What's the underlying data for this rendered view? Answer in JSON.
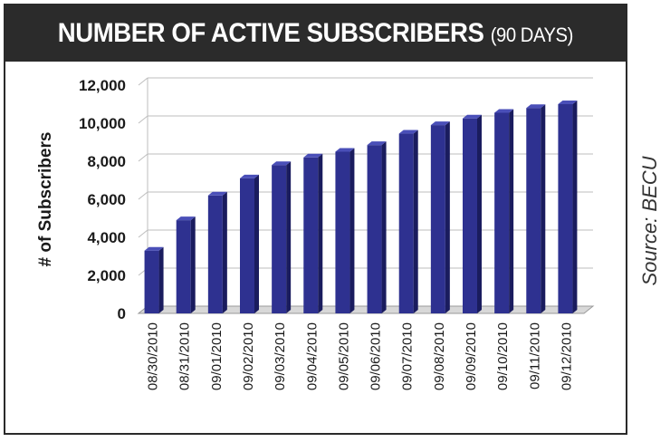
{
  "header": {
    "title": "NUMBER OF ACTIVE SUBSCRIBERS",
    "subtitle": "(90 DAYS)"
  },
  "source": "Source: BECU",
  "colors": {
    "bar": "#2e3190",
    "bar_side": "#1a1c5e",
    "bar_top": "#4a4fb8",
    "grid": "#bdbdbd",
    "header_bg": "#2b2b2b"
  },
  "chart_data": {
    "type": "bar",
    "title": "NUMBER OF ACTIVE SUBSCRIBERS (90 DAYS)",
    "ylabel": "# of Subscribers",
    "xlabel": "",
    "ylim": [
      0,
      12000
    ],
    "yticks": [
      0,
      2000,
      4000,
      6000,
      8000,
      10000,
      12000
    ],
    "ytick_labels": [
      "0",
      "2,000",
      "4,000",
      "6,000",
      "8,000",
      "10,000",
      "12,000"
    ],
    "grid": true,
    "legend": "none",
    "categories": [
      "08/30/2010",
      "08/31/2010",
      "09/01/2010",
      "09/02/2010",
      "09/03/2010",
      "09/04/2010",
      "09/05/2010",
      "09/06/2010",
      "09/07/2010",
      "09/08/2010",
      "09/09/2010",
      "09/10/2010",
      "09/11/2010",
      "09/12/2010"
    ],
    "values": [
      3300,
      4900,
      6200,
      7100,
      7800,
      8200,
      8500,
      8850,
      9450,
      9900,
      10250,
      10550,
      10800,
      11000
    ]
  }
}
